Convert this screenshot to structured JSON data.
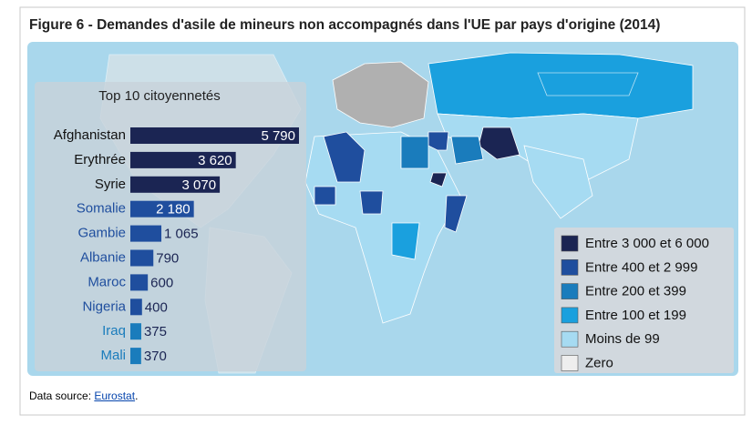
{
  "figure_title": "Figure 6 - Demandes d'asile de mineurs non accompagnés dans l'UE par pays d'origine (2014)",
  "chart_data": {
    "type": "bar",
    "orientation": "horizontal",
    "title": "Top 10 citoyennetés",
    "categories": [
      "Afghanistan",
      "Erythrée",
      "Syrie",
      "Somalie",
      "Gambie",
      "Albanie",
      "Maroc",
      "Nigeria",
      "Iraq",
      "Mali"
    ],
    "values": [
      5790,
      3620,
      3070,
      2180,
      1065,
      790,
      600,
      400,
      375,
      370
    ],
    "value_labels": [
      "5 790",
      "3 620",
      "3 070",
      "2 180",
      "1 065",
      "790",
      "600",
      "400",
      "375",
      "370"
    ],
    "colors": [
      "#1b2553",
      "#1b2553",
      "#1b2553",
      "#1f4e9e",
      "#1f4e9e",
      "#1f4e9e",
      "#1f4e9e",
      "#1f4e9e",
      "#1a7cbc",
      "#1a7cbc"
    ]
  },
  "map_legend": [
    {
      "label": "Entre 3 000 et 6 000",
      "color": "#1b2553"
    },
    {
      "label": "Entre 400 et 2 999",
      "color": "#1f4e9e"
    },
    {
      "label": "Entre 200 et 399",
      "color": "#1a7cbc"
    },
    {
      "label": "Entre 100 et 199",
      "color": "#1aa0de"
    },
    {
      "label": "Moins de 99",
      "color": "#a6dbf2"
    },
    {
      "label": "Zero",
      "color": "#eeeeee"
    }
  ],
  "source": {
    "prefix": "Data source: ",
    "link": "Eurostat",
    "suffix": "."
  }
}
